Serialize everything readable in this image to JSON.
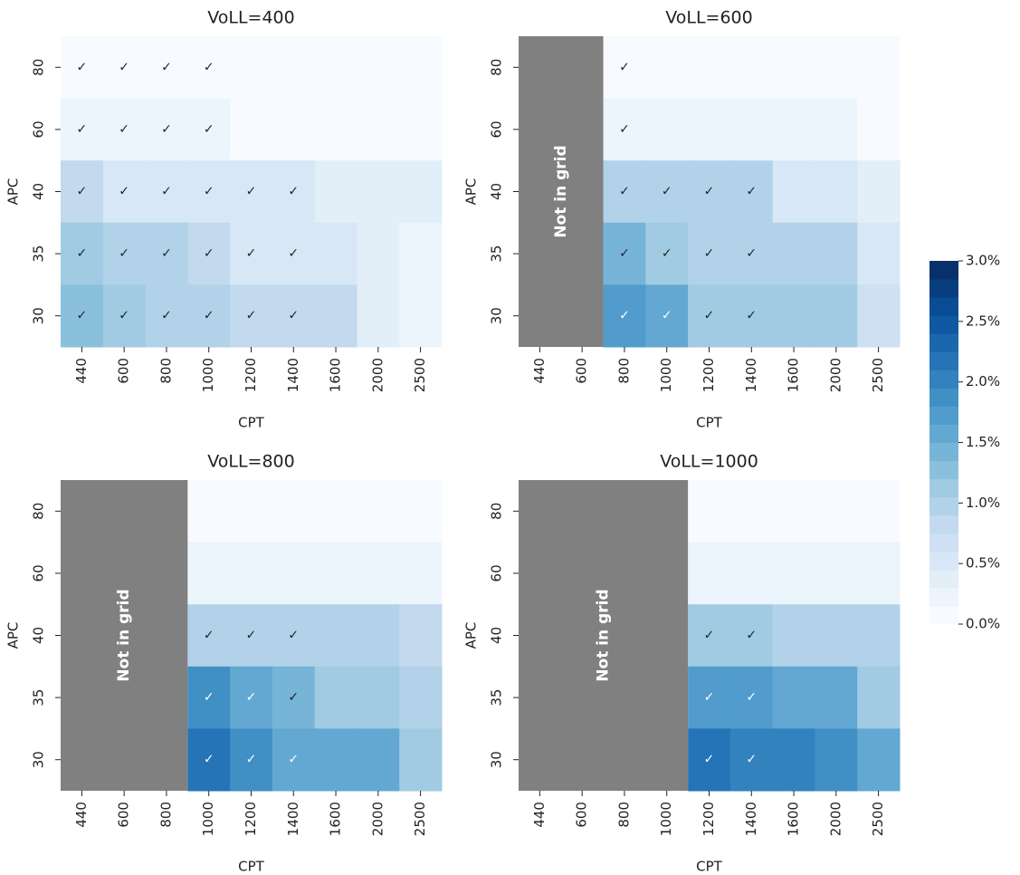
{
  "chart_data": [
    {
      "type": "heatmap",
      "title": "VoLL=400",
      "xlabel": "CPT",
      "ylabel": "APC",
      "x": [
        "440",
        "600",
        "800",
        "1000",
        "1200",
        "1400",
        "1600",
        "2000",
        "2500"
      ],
      "y": [
        "80",
        "60",
        "40",
        "35",
        "30"
      ],
      "values": [
        [
          0.1,
          0.1,
          0.1,
          0.1,
          0.1,
          0.1,
          0.1,
          0.1,
          0.1
        ],
        [
          0.3,
          0.3,
          0.3,
          0.3,
          0.1,
          0.1,
          0.1,
          0.1,
          0.1
        ],
        [
          0.8,
          0.6,
          0.6,
          0.5,
          0.5,
          0.5,
          0.4,
          0.4,
          0.4
        ],
        [
          1.1,
          1.0,
          0.9,
          0.8,
          0.6,
          0.6,
          0.6,
          0.4,
          0.2
        ],
        [
          1.3,
          1.2,
          1.0,
          0.9,
          0.8,
          0.8,
          0.8,
          0.4,
          0.2
        ]
      ],
      "checks": [
        [
          "✓",
          "✓",
          "✓",
          "✓",
          null,
          null,
          null,
          null,
          null
        ],
        [
          "✓",
          "✓",
          "✓",
          "✓",
          null,
          null,
          null,
          null,
          null
        ],
        [
          "✓",
          "✓",
          "✓",
          "✓",
          "✓",
          "✓",
          null,
          null,
          null
        ],
        [
          "✓",
          "✓",
          "✓",
          "✓",
          "✓",
          "✓",
          null,
          null,
          null
        ],
        [
          "✓",
          "✓",
          "✓",
          "✓",
          "✓",
          "✓",
          null,
          null,
          null
        ]
      ]
    },
    {
      "type": "heatmap",
      "title": "VoLL=600",
      "xlabel": "CPT",
      "ylabel": "APC",
      "annotation": "Not in grid",
      "x": [
        "440",
        "600",
        "800",
        "1000",
        "1200",
        "1400",
        "1600",
        "2000",
        "2500"
      ],
      "y": [
        "80",
        "60",
        "40",
        "35",
        "30"
      ],
      "values": [
        [
          null,
          null,
          0.1,
          0.1,
          0.1,
          0.1,
          0.1,
          0.1,
          0.1
        ],
        [
          null,
          null,
          0.3,
          0.3,
          0.3,
          0.3,
          0.3,
          0.3,
          0.1
        ],
        [
          null,
          null,
          0.9,
          0.9,
          0.9,
          0.9,
          0.6,
          0.6,
          0.4
        ],
        [
          null,
          null,
          1.4,
          1.1,
          1.0,
          1.0,
          1.0,
          1.0,
          0.6
        ],
        [
          null,
          null,
          1.7,
          1.5,
          1.1,
          1.1,
          1.1,
          1.1,
          0.7
        ]
      ],
      "checks": [
        [
          null,
          null,
          "✓",
          null,
          null,
          null,
          null,
          null,
          null
        ],
        [
          null,
          null,
          "✓",
          null,
          null,
          null,
          null,
          null,
          null
        ],
        [
          null,
          null,
          "✓",
          "✓",
          "✓",
          "✓",
          null,
          null,
          null
        ],
        [
          null,
          null,
          "✓",
          "✓",
          "✓",
          "✓",
          null,
          null,
          null
        ],
        [
          null,
          null,
          "✓",
          "✓",
          "✓",
          "✓",
          null,
          null,
          null
        ]
      ]
    },
    {
      "type": "heatmap",
      "title": "VoLL=800",
      "xlabel": "CPT",
      "ylabel": "APC",
      "annotation": "Not in grid",
      "x": [
        "440",
        "600",
        "800",
        "1000",
        "1200",
        "1400",
        "1600",
        "2000",
        "2500"
      ],
      "y": [
        "80",
        "60",
        "40",
        "35",
        "30"
      ],
      "values": [
        [
          null,
          null,
          null,
          0.1,
          0.1,
          0.1,
          0.1,
          0.1,
          0.1
        ],
        [
          null,
          null,
          null,
          0.3,
          0.3,
          0.2,
          0.2,
          0.2,
          0.2
        ],
        [
          null,
          null,
          null,
          0.9,
          0.9,
          0.9,
          0.9,
          0.9,
          0.8
        ],
        [
          null,
          null,
          null,
          1.8,
          1.5,
          1.4,
          1.2,
          1.2,
          0.9
        ],
        [
          null,
          null,
          null,
          2.1,
          1.9,
          1.6,
          1.5,
          1.5,
          1.1
        ]
      ],
      "checks": [
        [
          null,
          null,
          null,
          null,
          null,
          null,
          null,
          null,
          null
        ],
        [
          null,
          null,
          null,
          null,
          null,
          null,
          null,
          null,
          null
        ],
        [
          null,
          null,
          null,
          "✓",
          "✓",
          "✓",
          null,
          null,
          null
        ],
        [
          null,
          null,
          null,
          "✓",
          "✓",
          "✓",
          null,
          null,
          null
        ],
        [
          null,
          null,
          null,
          "✓",
          "✓",
          "✓",
          null,
          null,
          null
        ]
      ]
    },
    {
      "type": "heatmap",
      "title": "VoLL=1000",
      "xlabel": "CPT",
      "ylabel": "APC",
      "annotation": "Not in grid",
      "x": [
        "440",
        "600",
        "800",
        "1000",
        "1200",
        "1400",
        "1600",
        "2000",
        "2500"
      ],
      "y": [
        "80",
        "60",
        "40",
        "35",
        "30"
      ],
      "values": [
        [
          null,
          null,
          null,
          null,
          0.1,
          0.1,
          0.1,
          0.1,
          0.1
        ],
        [
          null,
          null,
          null,
          null,
          0.3,
          0.3,
          0.3,
          0.3,
          0.2
        ],
        [
          null,
          null,
          null,
          null,
          1.2,
          1.2,
          1.0,
          1.0,
          0.9
        ],
        [
          null,
          null,
          null,
          null,
          1.7,
          1.7,
          1.6,
          1.6,
          1.2
        ],
        [
          null,
          null,
          null,
          null,
          2.2,
          2.0,
          2.0,
          1.8,
          1.5
        ]
      ],
      "checks": [
        [
          null,
          null,
          null,
          null,
          null,
          null,
          null,
          null,
          null
        ],
        [
          null,
          null,
          null,
          null,
          null,
          null,
          null,
          null,
          null
        ],
        [
          null,
          null,
          null,
          null,
          "✓",
          "✓",
          null,
          null,
          null
        ],
        [
          null,
          null,
          null,
          null,
          "✓",
          "✓",
          null,
          null,
          null
        ],
        [
          null,
          null,
          null,
          null,
          "✓",
          "✓",
          null,
          null,
          null
        ]
      ]
    }
  ],
  "colorbar": {
    "zlim": [
      0,
      3
    ],
    "levels": 20,
    "colormap": [
      "#f7fbff",
      "#deebf7",
      "#c6dbef",
      "#9ecae1",
      "#6baed6",
      "#4292c6",
      "#2171b5",
      "#08519c",
      "#08306b"
    ],
    "ticks": [
      {
        "value": 0,
        "label": "0.0%"
      },
      {
        "value": 0.5,
        "label": "0.5%"
      },
      {
        "value": 1,
        "label": "1.0%"
      },
      {
        "value": 1.5,
        "label": "1.5%"
      },
      {
        "value": 2,
        "label": "2.0%"
      },
      {
        "value": 2.5,
        "label": "2.5%"
      },
      {
        "value": 3,
        "label": "3.0%"
      }
    ]
  }
}
